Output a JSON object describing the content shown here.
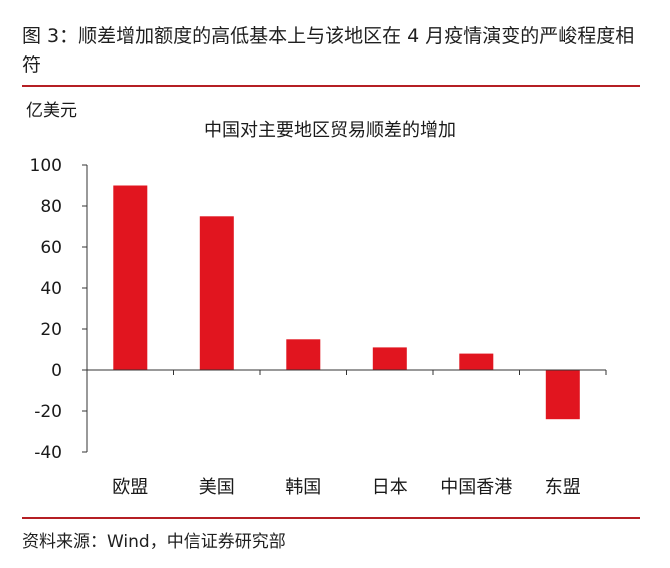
{
  "figure": {
    "title": "图 3：顺差增加额度的高低基本上与该地区在 4 月疫情演变的严峻程度相符",
    "source": "资料来源：Wind，中信证券研究部"
  },
  "colors": {
    "bar": "#e1151f",
    "accent_rule": "#b51f24",
    "axis": "#333333"
  },
  "chart_data": {
    "type": "bar",
    "title": "中国对主要地区贸易顺差的增加",
    "ylabel": "亿美元",
    "xlabel": "",
    "categories": [
      "欧盟",
      "美国",
      "韩国",
      "日本",
      "中国香港",
      "东盟"
    ],
    "values": [
      90,
      75,
      15,
      11,
      8,
      -24
    ],
    "ylim": [
      -40,
      100
    ],
    "yticks": [
      100,
      80,
      60,
      40,
      20,
      0,
      -20,
      -40
    ],
    "grid": false,
    "legend": "none"
  }
}
